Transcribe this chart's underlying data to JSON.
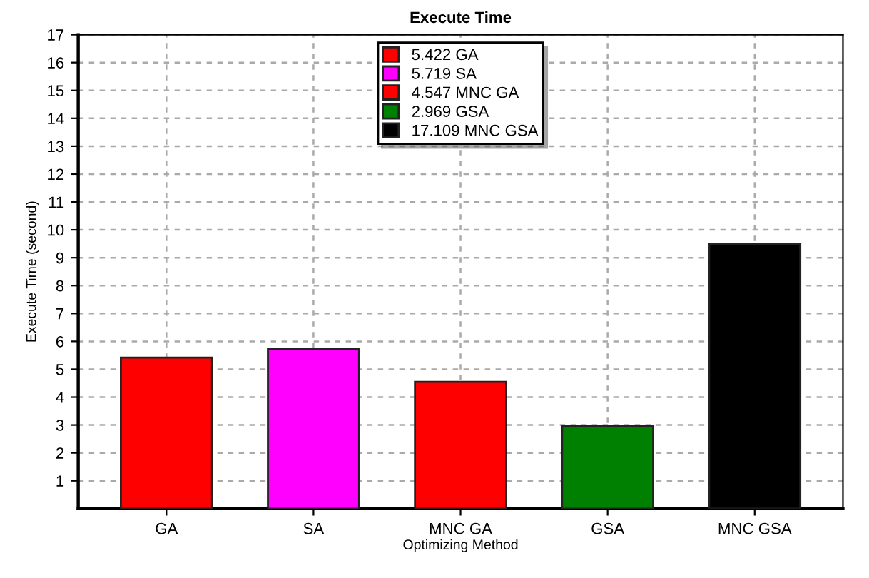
{
  "chart_data": {
    "type": "bar",
    "title": "Execute Time",
    "xlabel": "Optimizing Method",
    "ylabel": "Execute Time (second)",
    "categories": [
      "GA",
      "SA",
      "MNC GA",
      "GSA",
      "MNC GSA"
    ],
    "series": [
      {
        "name": "5.422 GA",
        "color": "#ff0000",
        "values": [
          5.42,
          null,
          null,
          null,
          null
        ]
      },
      {
        "name": "5.719 SA",
        "color": "#ff00ff",
        "values": [
          null,
          5.72,
          null,
          null,
          null
        ]
      },
      {
        "name": "4.547 MNC GA",
        "color": "#ff0000",
        "values": [
          null,
          null,
          4.55,
          null,
          null
        ]
      },
      {
        "name": "2.969 GSA",
        "color": "#008000",
        "values": [
          null,
          null,
          null,
          2.97,
          null
        ]
      },
      {
        "name": "17.109 MNC GSA",
        "color": "#000000",
        "values": [
          null,
          null,
          null,
          null,
          9.5
        ]
      }
    ],
    "ylim": [
      0,
      17
    ],
    "yticks": [
      1,
      2,
      3,
      4,
      5,
      6,
      7,
      8,
      9,
      10,
      11,
      12,
      13,
      14,
      15,
      16,
      17
    ],
    "grid": true,
    "legend": "top"
  }
}
